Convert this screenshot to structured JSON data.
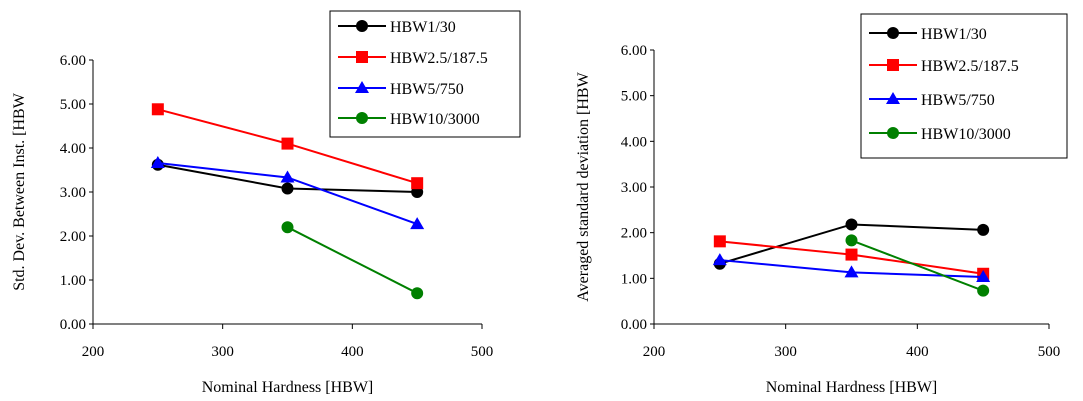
{
  "chart_data": [
    {
      "type": "line",
      "xlabel": "Nominal Hardness [HBW]",
      "ylabel": "Std. Dev. Between Inst. [HBW",
      "xlim": [
        200,
        500
      ],
      "ylim": [
        0,
        6
      ],
      "xticks": [
        "200",
        "300",
        "400",
        "500"
      ],
      "yticks": [
        "0.00",
        "1.00",
        "2.00",
        "3.00",
        "4.00",
        "5.00",
        "6.00"
      ],
      "grid": false,
      "legend_position": "top-right",
      "series": [
        {
          "name": "HBW1/30",
          "color": "#000000",
          "marker": "circle",
          "x": [
            250,
            350,
            450
          ],
          "y": [
            3.62,
            3.08,
            3.0
          ]
        },
        {
          "name": "HBW2.5/187.5",
          "color": "#ff0000",
          "marker": "square",
          "x": [
            250,
            350,
            450
          ],
          "y": [
            4.88,
            4.1,
            3.2
          ]
        },
        {
          "name": "HBW5/750",
          "color": "#0000ff",
          "marker": "triangle",
          "x": [
            250,
            350,
            450
          ],
          "y": [
            3.66,
            3.33,
            2.27
          ]
        },
        {
          "name": "HBW10/3000",
          "color": "#008000",
          "marker": "circle",
          "x": [
            350,
            450
          ],
          "y": [
            2.2,
            0.7
          ]
        }
      ]
    },
    {
      "type": "line",
      "xlabel": "Nominal Hardness [HBW]",
      "ylabel": "Averaged standard deviation [HBW",
      "xlim": [
        200,
        500
      ],
      "ylim": [
        0,
        6
      ],
      "xticks": [
        "200",
        "300",
        "400",
        "500"
      ],
      "yticks": [
        "0.00",
        "1.00",
        "2.00",
        "3.00",
        "4.00",
        "5.00",
        "6.00"
      ],
      "grid": false,
      "legend_position": "top-right",
      "series": [
        {
          "name": "HBW1/30",
          "color": "#000000",
          "marker": "circle",
          "x": [
            250,
            350,
            450
          ],
          "y": [
            1.32,
            2.18,
            2.06
          ]
        },
        {
          "name": "HBW2.5/187.5",
          "color": "#ff0000",
          "marker": "square",
          "x": [
            250,
            350,
            450
          ],
          "y": [
            1.81,
            1.52,
            1.1
          ]
        },
        {
          "name": "HBW5/750",
          "color": "#0000ff",
          "marker": "triangle",
          "x": [
            250,
            350,
            450
          ],
          "y": [
            1.4,
            1.13,
            1.03
          ]
        },
        {
          "name": "HBW10/3000",
          "color": "#008000",
          "marker": "circle",
          "x": [
            350,
            450
          ],
          "y": [
            1.83,
            0.73
          ]
        }
      ]
    }
  ]
}
